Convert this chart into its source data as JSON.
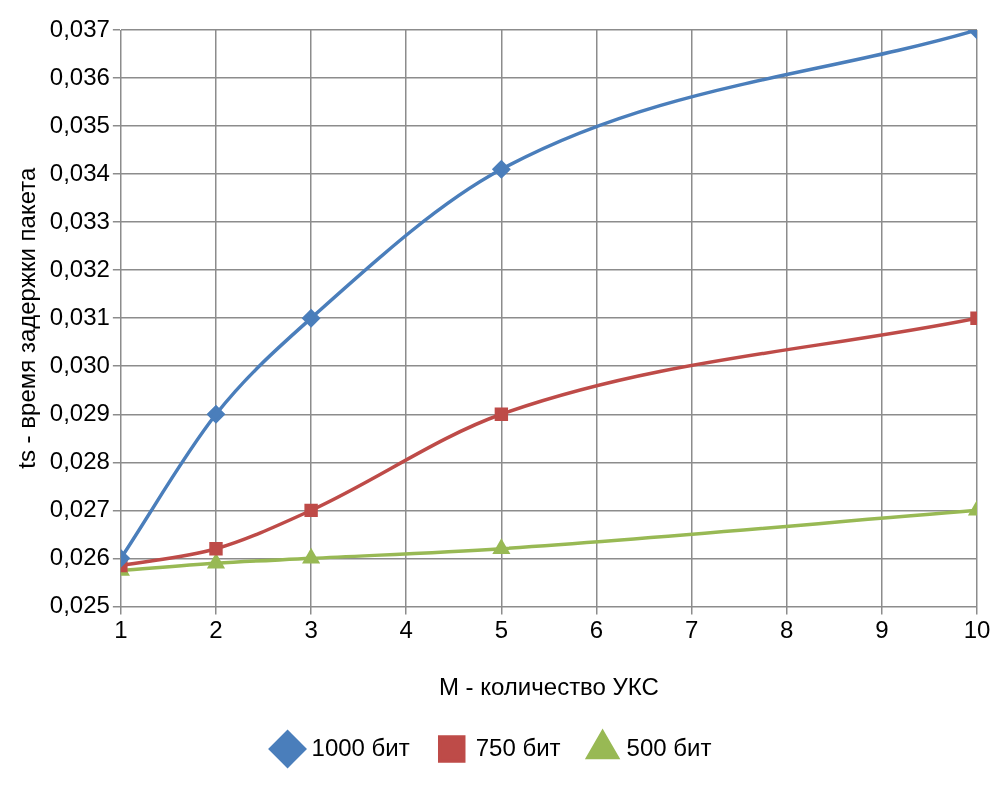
{
  "chart_data": {
    "type": "line",
    "xlabel": "M - количество УКС",
    "ylabel": "ts - время задержки пакета",
    "x": [
      1,
      2,
      3,
      5,
      10
    ],
    "series": [
      {
        "name": "1000 бит",
        "color": "#4a7ebb",
        "marker": "diamond",
        "values": [
          0.026,
          0.029,
          0.031,
          0.0341,
          0.037
        ]
      },
      {
        "name": "750 бит",
        "color": "#be4b48",
        "marker": "square",
        "values": [
          0.02585,
          0.0262,
          0.027,
          0.029,
          0.031
        ]
      },
      {
        "name": "500 бит",
        "color": "#98b954",
        "marker": "triangle",
        "values": [
          0.02575,
          0.0259,
          0.026,
          0.0262,
          0.027
        ]
      }
    ],
    "xlim": [
      1,
      10
    ],
    "xticks": [
      1,
      2,
      3,
      4,
      5,
      6,
      7,
      8,
      9,
      10
    ],
    "ylim": [
      0.025,
      0.037
    ],
    "yticks": [
      {
        "value": 0.025,
        "label": "0,025"
      },
      {
        "value": 0.026,
        "label": "0,026"
      },
      {
        "value": 0.027,
        "label": "0,027"
      },
      {
        "value": 0.028,
        "label": "0,028"
      },
      {
        "value": 0.029,
        "label": "0,029"
      },
      {
        "value": 0.03,
        "label": "0,030"
      },
      {
        "value": 0.031,
        "label": "0,031"
      },
      {
        "value": 0.032,
        "label": "0,032"
      },
      {
        "value": 0.033,
        "label": "0,033"
      },
      {
        "value": 0.034,
        "label": "0,034"
      },
      {
        "value": 0.035,
        "label": "0,035"
      },
      {
        "value": 0.036,
        "label": "0,036"
      },
      {
        "value": 0.037,
        "label": "0,037"
      }
    ],
    "grid": true,
    "legend": "bottom",
    "line_style": "solid"
  }
}
